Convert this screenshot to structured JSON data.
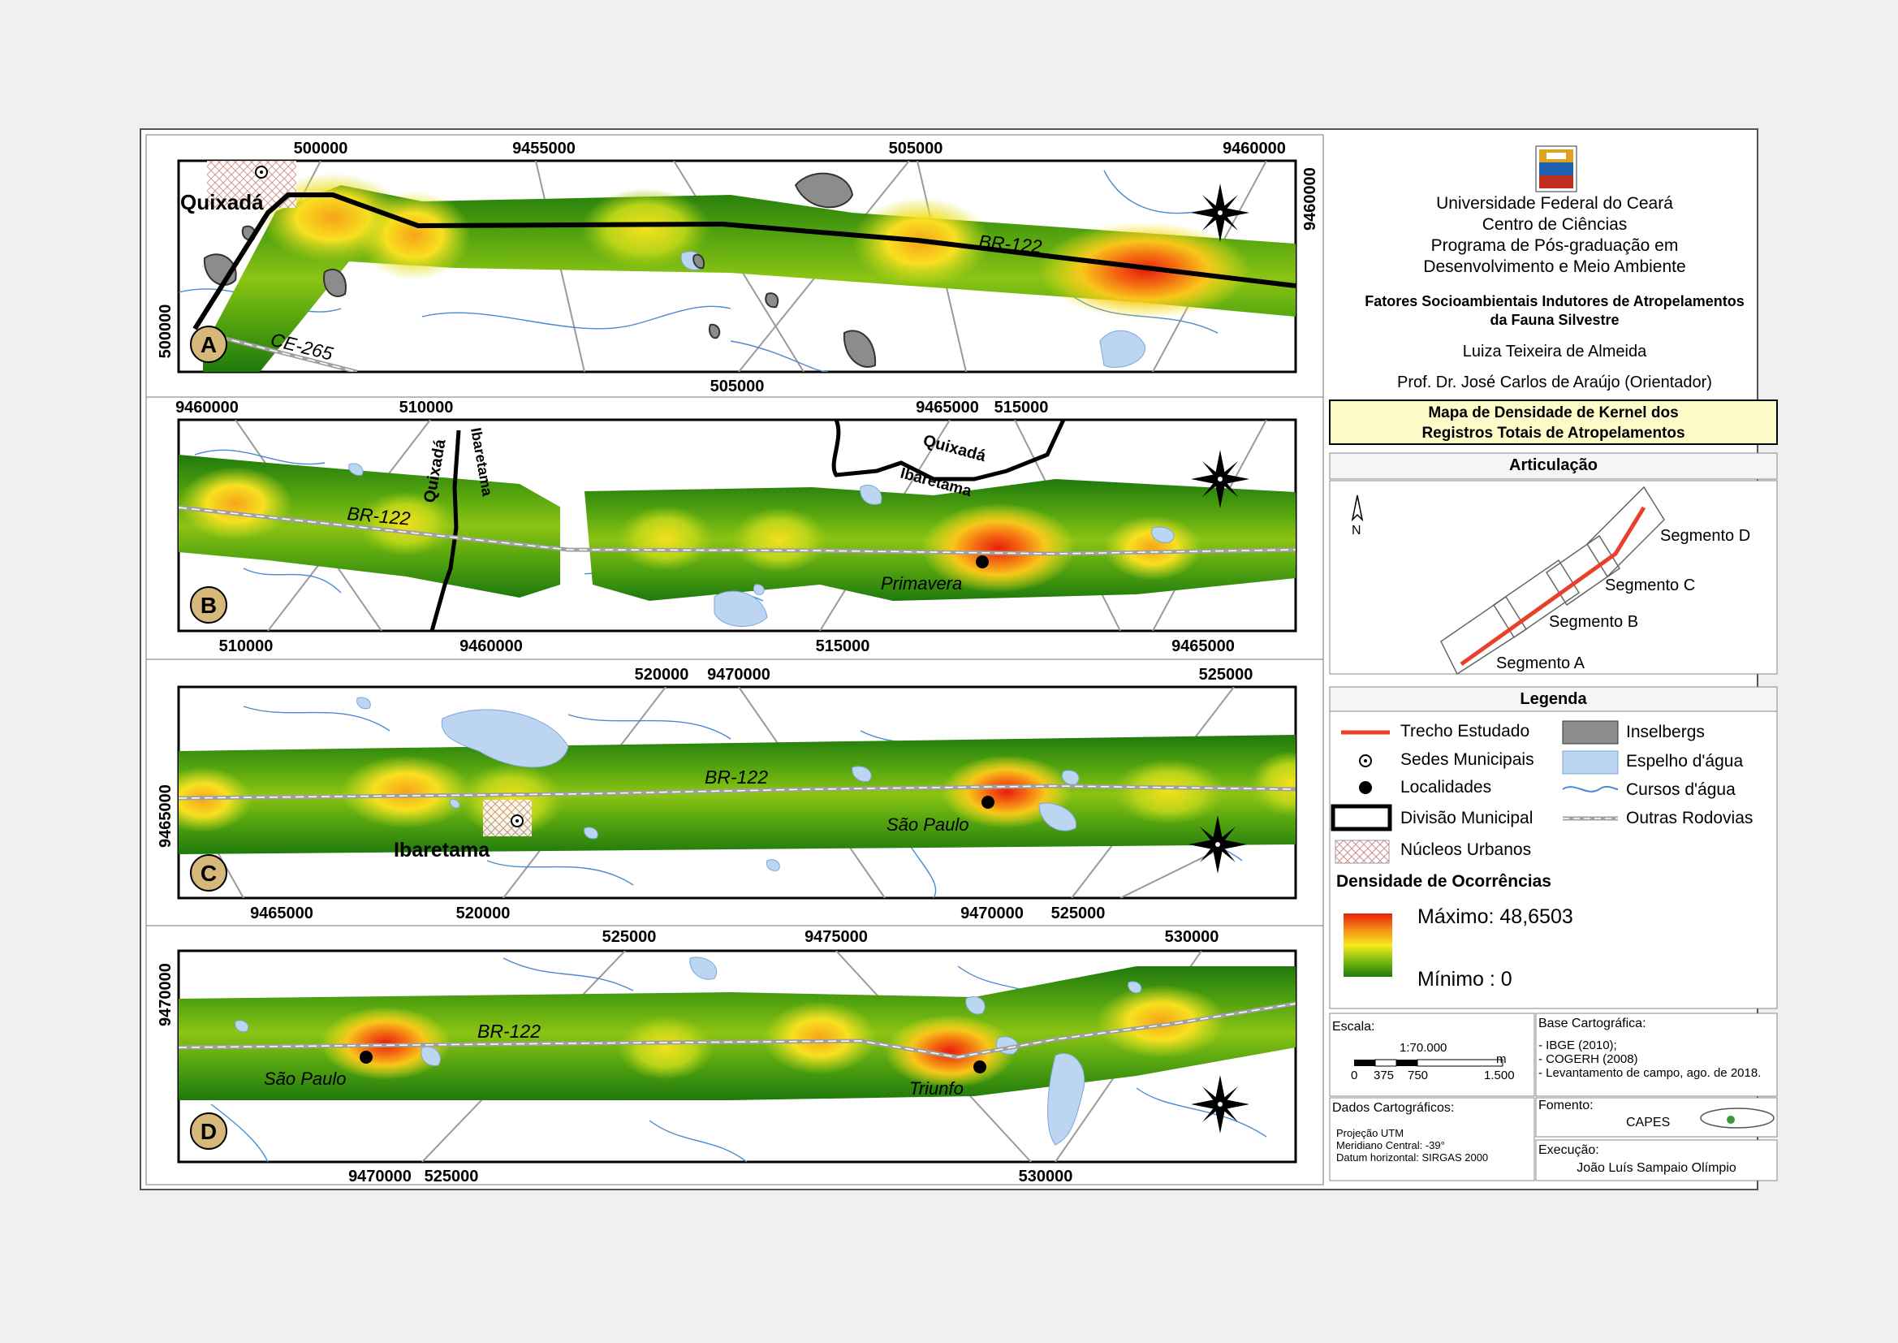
{
  "institution": {
    "line1": "Universidade Federal do Ceará",
    "line2": "Centro de Ciências",
    "line3": "Programa de Pós-graduação em",
    "line4": "Desenvolvimento e Meio Ambiente"
  },
  "project_title": {
    "line1": "Fatores Socioambientais Indutores de Atropelamentos",
    "line2": "da Fauna Silvestre"
  },
  "author": "Luiza Teixeira de Almeida",
  "advisor": "Prof. Dr. José Carlos de Araújo (Orientador)",
  "map_title": {
    "line1": "Mapa de Densidade de Kernel dos",
    "line2": "Registros Totais de Atropelamentos"
  },
  "articulacao": {
    "title": "Articulação",
    "north": "N",
    "segments": [
      "Segmento A",
      "Segmento B",
      "Segmento C",
      "Segmento D"
    ]
  },
  "legenda": {
    "title": "Legenda",
    "items": {
      "trecho": "Trecho Estudado",
      "sedes": "Sedes Municipais",
      "localidades": "Localidades",
      "divisao": "Divisão Municipal",
      "nucleos": "Núcleos Urbanos",
      "inselbergs": "Inselbergs",
      "espelho": "Espelho d'água",
      "cursos": "Cursos d'água",
      "rodovias": "Outras Rodovias"
    },
    "density_title": "Densidade de Ocorrências",
    "max_label": "Máximo: 48,6503",
    "min_label": "Mínimo : 0"
  },
  "scale": {
    "label": "Escala:",
    "ratio": "1:70.000",
    "unit": "m",
    "ticks": [
      "0",
      "375",
      "750",
      "1.500"
    ]
  },
  "base": {
    "label": "Base Cartográfica:",
    "lines": [
      "- IBGE (2010);",
      "- COGERH (2008)",
      "- Levantamento de campo, ago. de 2018."
    ]
  },
  "dados": {
    "label": "Dados Cartográficos:",
    "lines": [
      "Projeção UTM",
      "Meridiano Central: -39°",
      "Datum horizontal: SIRGAS 2000"
    ]
  },
  "fomento": {
    "label": "Fomento:",
    "value": "CAPES"
  },
  "execucao": {
    "label": "Execução:",
    "value": "João Luís Sampaio Olímpio"
  },
  "colors": {
    "water": "#bcd6f2",
    "rock": "#8c8c8c",
    "road": "#a0a0a0",
    "trecho": "#e8402a",
    "sheet": "#f0f0f0"
  },
  "panels": [
    {
      "letter": "A",
      "top_labels": [
        "500000",
        "9455000",
        "505000",
        "9460000"
      ],
      "bottom_labels": [
        "505000"
      ],
      "left_labels": [
        "500000"
      ],
      "right_labels": [
        "9460000"
      ],
      "map_labels": {
        "road": "BR-122",
        "road2": "CE-265",
        "city": "Quixadá"
      }
    },
    {
      "letter": "B",
      "top_labels": [
        "9460000",
        "510000",
        "9465000",
        "515000"
      ],
      "bottom_labels": [
        "510000",
        "9460000",
        "515000",
        "9465000"
      ],
      "map_labels": {
        "road": "BR-122",
        "mun1": "Quixadá",
        "mun2": "Ibaretama",
        "town": "Primavera"
      }
    },
    {
      "letter": "C",
      "top_labels": [
        "520000",
        "9470000",
        "525000"
      ],
      "bottom_labels": [
        "9465000",
        "520000",
        "9470000",
        "525000"
      ],
      "left_labels": [
        "9465000"
      ],
      "map_labels": {
        "road": "BR-122",
        "city": "Ibaretama",
        "town": "São Paulo"
      }
    },
    {
      "letter": "D",
      "top_labels": [
        "525000",
        "9475000",
        "530000"
      ],
      "bottom_labels": [
        "9470000",
        "525000",
        "530000"
      ],
      "left_labels": [
        "9470000"
      ],
      "map_labels": {
        "road": "BR-122",
        "town1": "São Paulo",
        "town2": "Triunfo"
      }
    }
  ]
}
